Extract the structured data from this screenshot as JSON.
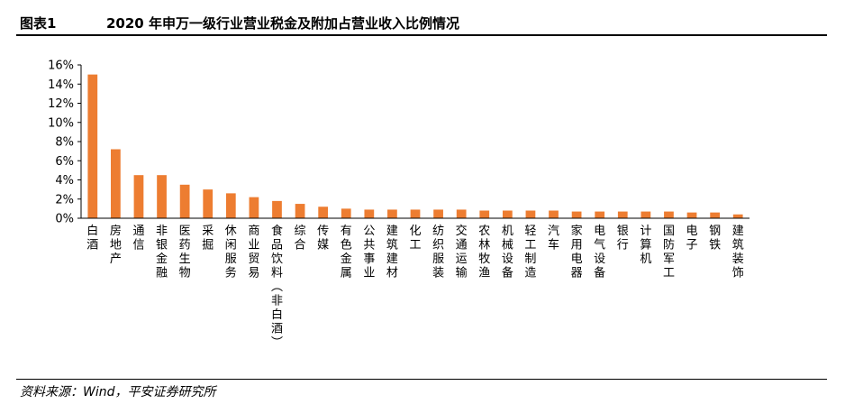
{
  "header": {
    "figure_label": "图表1",
    "title": "2020 年申万一级行业营业税金及附加占营业收入比例情况"
  },
  "footer": {
    "source": "资料来源：Wind，平安证券研究所"
  },
  "colors": {
    "bar": "#ED7D31",
    "axis": "#000000"
  },
  "chart_data": {
    "type": "bar",
    "title": "",
    "xlabel": "",
    "ylabel": "",
    "ylim": [
      0,
      16
    ],
    "y_ticks": [
      "0%",
      "2%",
      "4%",
      "6%",
      "8%",
      "10%",
      "12%",
      "14%",
      "16%"
    ],
    "y_tick_values": [
      0,
      2,
      4,
      6,
      8,
      10,
      12,
      14,
      16
    ],
    "grid": false,
    "legend": "none",
    "categories": [
      "白酒",
      "房地产",
      "通信",
      "非银金融",
      "医药生物",
      "采掘",
      "休闲服务",
      "商业贸易",
      "食品饮料（非白酒）",
      "综合",
      "传媒",
      "有色金属",
      "公共事业",
      "建筑建材",
      "化工",
      "纺织服装",
      "交通运输",
      "农林牧渔",
      "机械设备",
      "轻工制造",
      "汽车",
      "家用电器",
      "电气设备",
      "银行",
      "计算机",
      "国防军工",
      "电子",
      "钢铁",
      "建筑装饰"
    ],
    "values": [
      15.0,
      7.2,
      4.5,
      4.5,
      3.5,
      3.0,
      2.6,
      2.2,
      1.8,
      1.5,
      1.2,
      1.0,
      0.9,
      0.9,
      0.9,
      0.9,
      0.9,
      0.8,
      0.8,
      0.8,
      0.8,
      0.7,
      0.7,
      0.7,
      0.7,
      0.7,
      0.6,
      0.6,
      0.4
    ]
  }
}
